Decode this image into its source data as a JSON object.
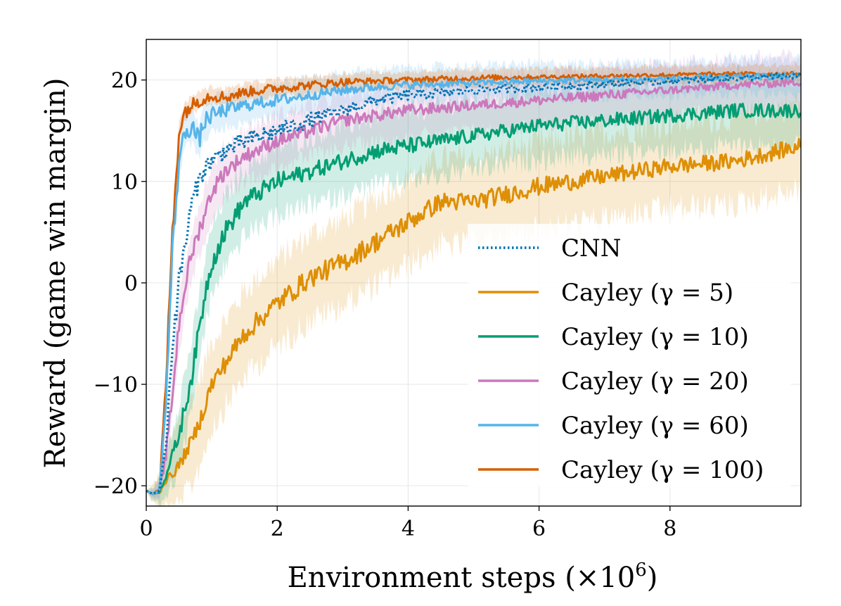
{
  "chart_data": {
    "type": "line",
    "title": "",
    "xlabel": "Environment steps (×10",
    "xlabel_sup": "6",
    "xlabel_close": ")",
    "ylabel": "Reward (game win margin)",
    "xlim": [
      0,
      10
    ],
    "ylim": [
      -22,
      24
    ],
    "xticks": [
      0,
      2,
      4,
      6,
      8
    ],
    "xtick_labels": [
      "0",
      "2",
      "4",
      "6",
      "8"
    ],
    "yticks": [
      -20,
      -10,
      0,
      10,
      20
    ],
    "ytick_labels": [
      "−20",
      "−10",
      "0",
      "10",
      "20"
    ],
    "grid": true,
    "legend_position": "lower-right",
    "series": [
      {
        "name": "CNN",
        "color": "#0173b2",
        "style": "dotted",
        "band": 0,
        "x": [
          0,
          0.1,
          0.2,
          0.3,
          0.4,
          0.5,
          0.6,
          0.7,
          0.8,
          0.9,
          1.0,
          1.2,
          1.5,
          2.0,
          2.5,
          3.0,
          3.5,
          4.0,
          5.0,
          6.0,
          7.0,
          8.0,
          9.0,
          10.0
        ],
        "y": [
          -20.5,
          -20.8,
          -20.5,
          -16,
          -6,
          0,
          4,
          8,
          10,
          11.5,
          12,
          13,
          14,
          15,
          16,
          17,
          18,
          18.5,
          19,
          19.3,
          19.6,
          19.9,
          20.2,
          20.4
        ],
        "noise": [
          0,
          0,
          0,
          0.5,
          1.2,
          1.2,
          1.2,
          1.0,
          0.9,
          0.9,
          0.9,
          0.9,
          0.9,
          0.8,
          0.8,
          0.6,
          0.6,
          0.5,
          0.4,
          0.4,
          0.4,
          0.3,
          0.3,
          0.3
        ]
      },
      {
        "name": "Cayley (γ = 5)",
        "color": "#de8f05",
        "style": "solid",
        "band": 5,
        "x": [
          0,
          0.1,
          0.2,
          0.3,
          0.4,
          0.5,
          0.7,
          0.8,
          1.0,
          1.2,
          1.5,
          2.0,
          2.5,
          3.0,
          3.5,
          4.0,
          4.5,
          5.0,
          6.0,
          7.0,
          8.0,
          9.0,
          10.0
        ],
        "y": [
          -20.5,
          -20.8,
          -20.6,
          -19.5,
          -18.8,
          -18,
          -15.5,
          -14,
          -10,
          -8,
          -5,
          -2,
          0.5,
          2,
          4,
          6,
          8,
          8,
          9.5,
          10.5,
          11.5,
          12,
          13.5
        ],
        "noise": [
          0,
          0,
          0.2,
          0.3,
          0.5,
          0.6,
          0.7,
          0.8,
          0.9,
          0.9,
          1.0,
          1.0,
          1.0,
          1.0,
          1.0,
          1.0,
          0.9,
          0.9,
          0.9,
          0.8,
          0.8,
          0.8,
          0.8
        ]
      },
      {
        "name": "Cayley (γ = 10)",
        "color": "#029e73",
        "style": "solid",
        "band": 4,
        "x": [
          0,
          0.1,
          0.2,
          0.3,
          0.4,
          0.5,
          0.6,
          0.7,
          0.8,
          0.9,
          1.0,
          1.2,
          1.5,
          2.0,
          2.5,
          3.0,
          3.5,
          4.0,
          5.0,
          6.0,
          7.0,
          8.0,
          9.0,
          10.0
        ],
        "y": [
          -20.5,
          -20.8,
          -20.5,
          -19,
          -17,
          -15,
          -12,
          -9,
          -5,
          -1,
          2,
          5,
          8,
          10,
          11,
          12,
          13,
          13.5,
          14.5,
          15.5,
          16,
          16.5,
          17,
          17
        ],
        "noise": [
          0,
          0,
          0.2,
          0.4,
          0.6,
          0.8,
          1.0,
          1.0,
          1.0,
          1.0,
          1.0,
          1.0,
          0.9,
          0.9,
          0.8,
          0.8,
          0.8,
          0.8,
          0.7,
          0.7,
          0.7,
          0.7,
          0.7,
          0.7
        ]
      },
      {
        "name": "Cayley (γ = 20)",
        "color": "#cc78bc",
        "style": "solid",
        "band": 3,
        "x": [
          0,
          0.1,
          0.2,
          0.3,
          0.4,
          0.5,
          0.6,
          0.7,
          0.8,
          0.9,
          1.0,
          1.2,
          1.5,
          2.0,
          2.5,
          3.0,
          3.5,
          4.0,
          5.0,
          6.0,
          7.0,
          8.0,
          9.0,
          10.0
        ],
        "y": [
          -20.5,
          -20.8,
          -20.5,
          -17,
          -11,
          -4,
          0,
          3,
          5,
          7,
          9,
          11,
          12.5,
          14,
          15,
          16,
          16.5,
          17,
          17.5,
          18,
          18.5,
          19,
          19.5,
          19.8
        ],
        "noise": [
          0,
          0,
          0.2,
          0.6,
          1.0,
          1.0,
          0.9,
          0.9,
          0.9,
          0.8,
          0.8,
          0.8,
          0.7,
          0.7,
          0.7,
          0.6,
          0.6,
          0.6,
          0.5,
          0.5,
          0.5,
          0.4,
          0.4,
          0.4
        ]
      },
      {
        "name": "Cayley (γ = 60)",
        "color": "#56b4e9",
        "style": "solid",
        "band": 2,
        "x": [
          0,
          0.1,
          0.2,
          0.3,
          0.4,
          0.5,
          0.6,
          0.7,
          0.8,
          0.9,
          1.0,
          1.2,
          1.5,
          2.0,
          2.5,
          3.0,
          3.5,
          4.0,
          5.0,
          6.0,
          7.0,
          8.0,
          9.0,
          10.0
        ],
        "y": [
          -20.5,
          -20.8,
          -20.5,
          -12,
          3,
          12,
          15,
          15.5,
          14,
          16,
          16.5,
          17,
          17.5,
          18,
          18.5,
          19,
          19.3,
          19.5,
          19.7,
          19.9,
          20,
          20.1,
          20.3,
          20.4
        ],
        "noise": [
          0,
          0,
          0.2,
          0.8,
          1.2,
          1.2,
          1.0,
          1.0,
          1.0,
          0.9,
          0.8,
          0.7,
          0.6,
          0.6,
          0.5,
          0.5,
          0.4,
          0.4,
          0.3,
          0.3,
          0.3,
          0.3,
          0.3,
          0.3
        ]
      },
      {
        "name": "Cayley (γ = 100)",
        "color": "#d55e00",
        "style": "solid",
        "band": 1,
        "x": [
          0,
          0.1,
          0.2,
          0.3,
          0.4,
          0.5,
          0.6,
          0.7,
          0.8,
          1.0,
          1.2,
          1.5,
          2.0,
          2.5,
          3.0,
          3.5,
          4.0,
          5.0,
          6.0,
          7.0,
          8.0,
          9.0,
          10.0
        ],
        "y": [
          -20.5,
          -20.8,
          -20.5,
          -10,
          5,
          15,
          17,
          17.5,
          18,
          18.5,
          18.3,
          18.8,
          19.2,
          19.5,
          19.8,
          19.9,
          20,
          20.2,
          20.3,
          20.4,
          20.5,
          20.6,
          20.6
        ],
        "noise": [
          0,
          0,
          0.2,
          0.8,
          1.2,
          1.0,
          0.8,
          0.7,
          0.7,
          0.6,
          0.6,
          0.5,
          0.5,
          0.4,
          0.4,
          0.3,
          0.3,
          0.3,
          0.2,
          0.2,
          0.2,
          0.2,
          0.2
        ]
      }
    ]
  }
}
